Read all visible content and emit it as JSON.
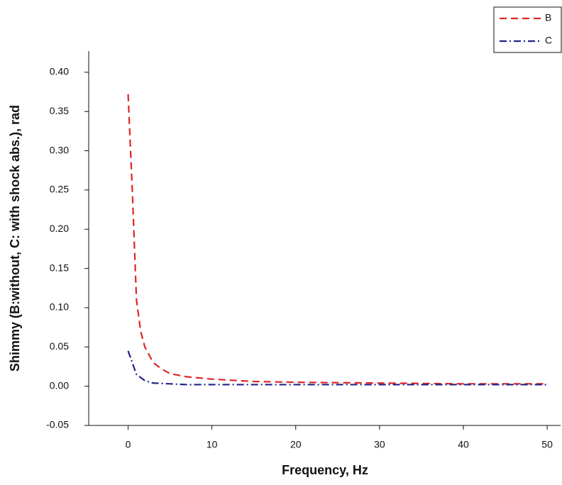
{
  "chart_data": {
    "type": "line",
    "xlabel": "Frequency, Hz",
    "ylabel": "Shimmy (B:without, C: with shock abs.), rad",
    "xlim": [
      -4.7,
      51.6
    ],
    "xticks": [
      0,
      10,
      20,
      30,
      40,
      50
    ],
    "ylim": [
      -0.05,
      0.427
    ],
    "yticks": [
      {
        "value": -0.05,
        "label": "-0.05"
      },
      {
        "value": 0,
        "label": "0.00"
      },
      {
        "value": 0.05,
        "label": "0.05"
      },
      {
        "value": 0.1,
        "label": "0.10"
      },
      {
        "value": 0.15,
        "label": "0.15"
      },
      {
        "value": 0.2,
        "label": "0.20"
      },
      {
        "value": 0.25,
        "label": "0.25"
      },
      {
        "value": 0.3,
        "label": "0.30"
      },
      {
        "value": 0.35,
        "label": "0.35"
      },
      {
        "value": 0.4,
        "label": "0.40"
      }
    ],
    "legend": "upper right",
    "series": [
      {
        "name": "B",
        "color": "#e02424",
        "line_style": "dashed",
        "x": [
          0,
          0.5,
          1,
          1.5,
          2,
          3,
          4,
          5,
          7,
          10,
          15,
          20,
          30,
          40,
          50
        ],
        "values": [
          0.372,
          0.25,
          0.11,
          0.07,
          0.05,
          0.03,
          0.022,
          0.016,
          0.012,
          0.009,
          0.006,
          0.005,
          0.004,
          0.003,
          0.003
        ]
      },
      {
        "name": "C",
        "color": "#22228a",
        "line_style": "dashdot",
        "x": [
          0,
          0.5,
          1,
          2,
          3,
          5,
          7,
          10,
          20,
          50
        ],
        "values": [
          0.045,
          0.03,
          0.015,
          0.007,
          0.004,
          0.003,
          0.002,
          0.002,
          0.002,
          0.002
        ]
      }
    ]
  }
}
